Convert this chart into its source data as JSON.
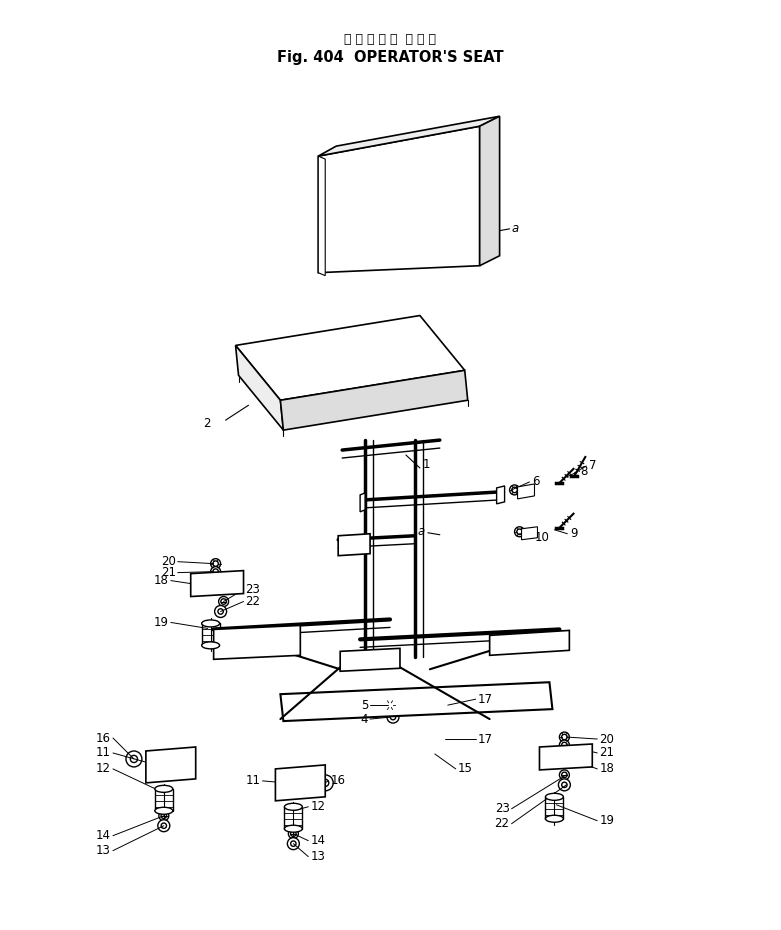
{
  "title_japanese": "オ ペ レ ー タ  シ ー ト",
  "title_english": "Fig. 404  OPERATOR'S SEAT",
  "bg": "#ffffff",
  "lc": "#000000",
  "fig_width": 7.81,
  "fig_height": 9.3,
  "dpi": 100
}
